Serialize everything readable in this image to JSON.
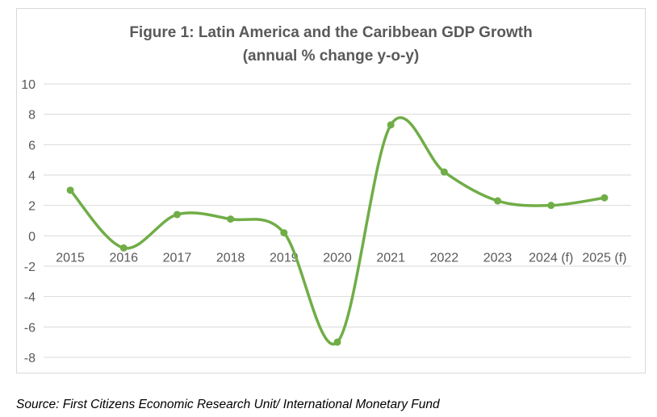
{
  "chart_data": {
    "type": "line",
    "title": "Figure 1: Latin America and the Caribbean GDP Growth",
    "subtitle": "(annual % change y-o-y)",
    "categories": [
      "2015",
      "2016",
      "2017",
      "2018",
      "2019",
      "2020",
      "2021",
      "2022",
      "2023",
      "2024 (f)",
      "2025 (f)"
    ],
    "values": [
      3.0,
      -0.8,
      1.4,
      1.1,
      0.2,
      -7.0,
      7.3,
      4.2,
      2.3,
      2.0,
      2.5
    ],
    "ylim": [
      -8,
      10
    ],
    "yticks": [
      10,
      8,
      6,
      4,
      2,
      0,
      -2,
      -4,
      -6,
      -8
    ],
    "grid": true,
    "smoothed": true,
    "line_color": "#70ad47",
    "xlabel": "",
    "ylabel": ""
  },
  "source": "Source: First Citizens Economic Research Unit/ International Monetary Fund"
}
